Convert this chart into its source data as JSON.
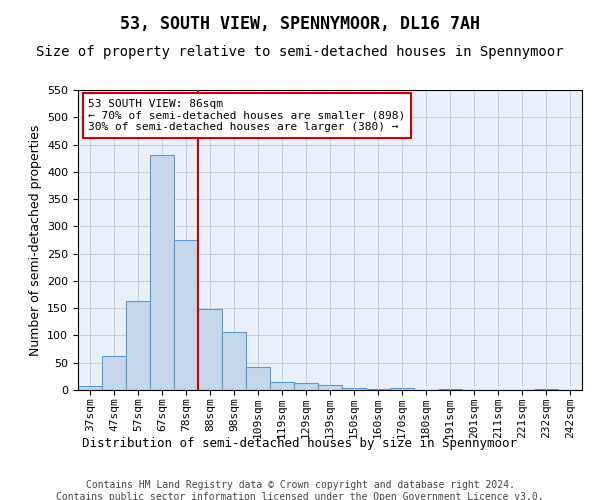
{
  "title": "53, SOUTH VIEW, SPENNYMOOR, DL16 7AH",
  "subtitle": "Size of property relative to semi-detached houses in Spennymoor",
  "xlabel": "Distribution of semi-detached houses by size in Spennymoor",
  "ylabel": "Number of semi-detached properties",
  "categories": [
    "37sqm",
    "47sqm",
    "57sqm",
    "67sqm",
    "78sqm",
    "88sqm",
    "98sqm",
    "109sqm",
    "119sqm",
    "129sqm",
    "139sqm",
    "150sqm",
    "160sqm",
    "170sqm",
    "180sqm",
    "191sqm",
    "201sqm",
    "211sqm",
    "221sqm",
    "232sqm",
    "242sqm"
  ],
  "values": [
    7,
    62,
    163,
    430,
    275,
    148,
    107,
    43,
    14,
    13,
    9,
    4,
    2,
    4,
    0,
    2,
    0,
    0,
    0,
    2,
    0
  ],
  "bar_color": "#c5d8eb",
  "bar_edge_color": "#5b9bd5",
  "annotation_text": "53 SOUTH VIEW: 86sqm\n← 70% of semi-detached houses are smaller (898)\n30% of semi-detached houses are larger (380) →",
  "annotation_box_color": "#ffffff",
  "annotation_box_edge_color": "#cc0000",
  "vline_color": "#cc0000",
  "vline_x": 4.5,
  "ylim": [
    0,
    550
  ],
  "yticks": [
    0,
    50,
    100,
    150,
    200,
    250,
    300,
    350,
    400,
    450,
    500,
    550
  ],
  "footer_line1": "Contains HM Land Registry data © Crown copyright and database right 2024.",
  "footer_line2": "Contains public sector information licensed under the Open Government Licence v3.0.",
  "bg_color": "#ffffff",
  "plot_bg_color": "#eaf0f8",
  "grid_color": "#c8d0dc",
  "title_fontsize": 12,
  "subtitle_fontsize": 10,
  "axis_label_fontsize": 9,
  "tick_fontsize": 8,
  "annotation_fontsize": 8,
  "footer_fontsize": 7
}
